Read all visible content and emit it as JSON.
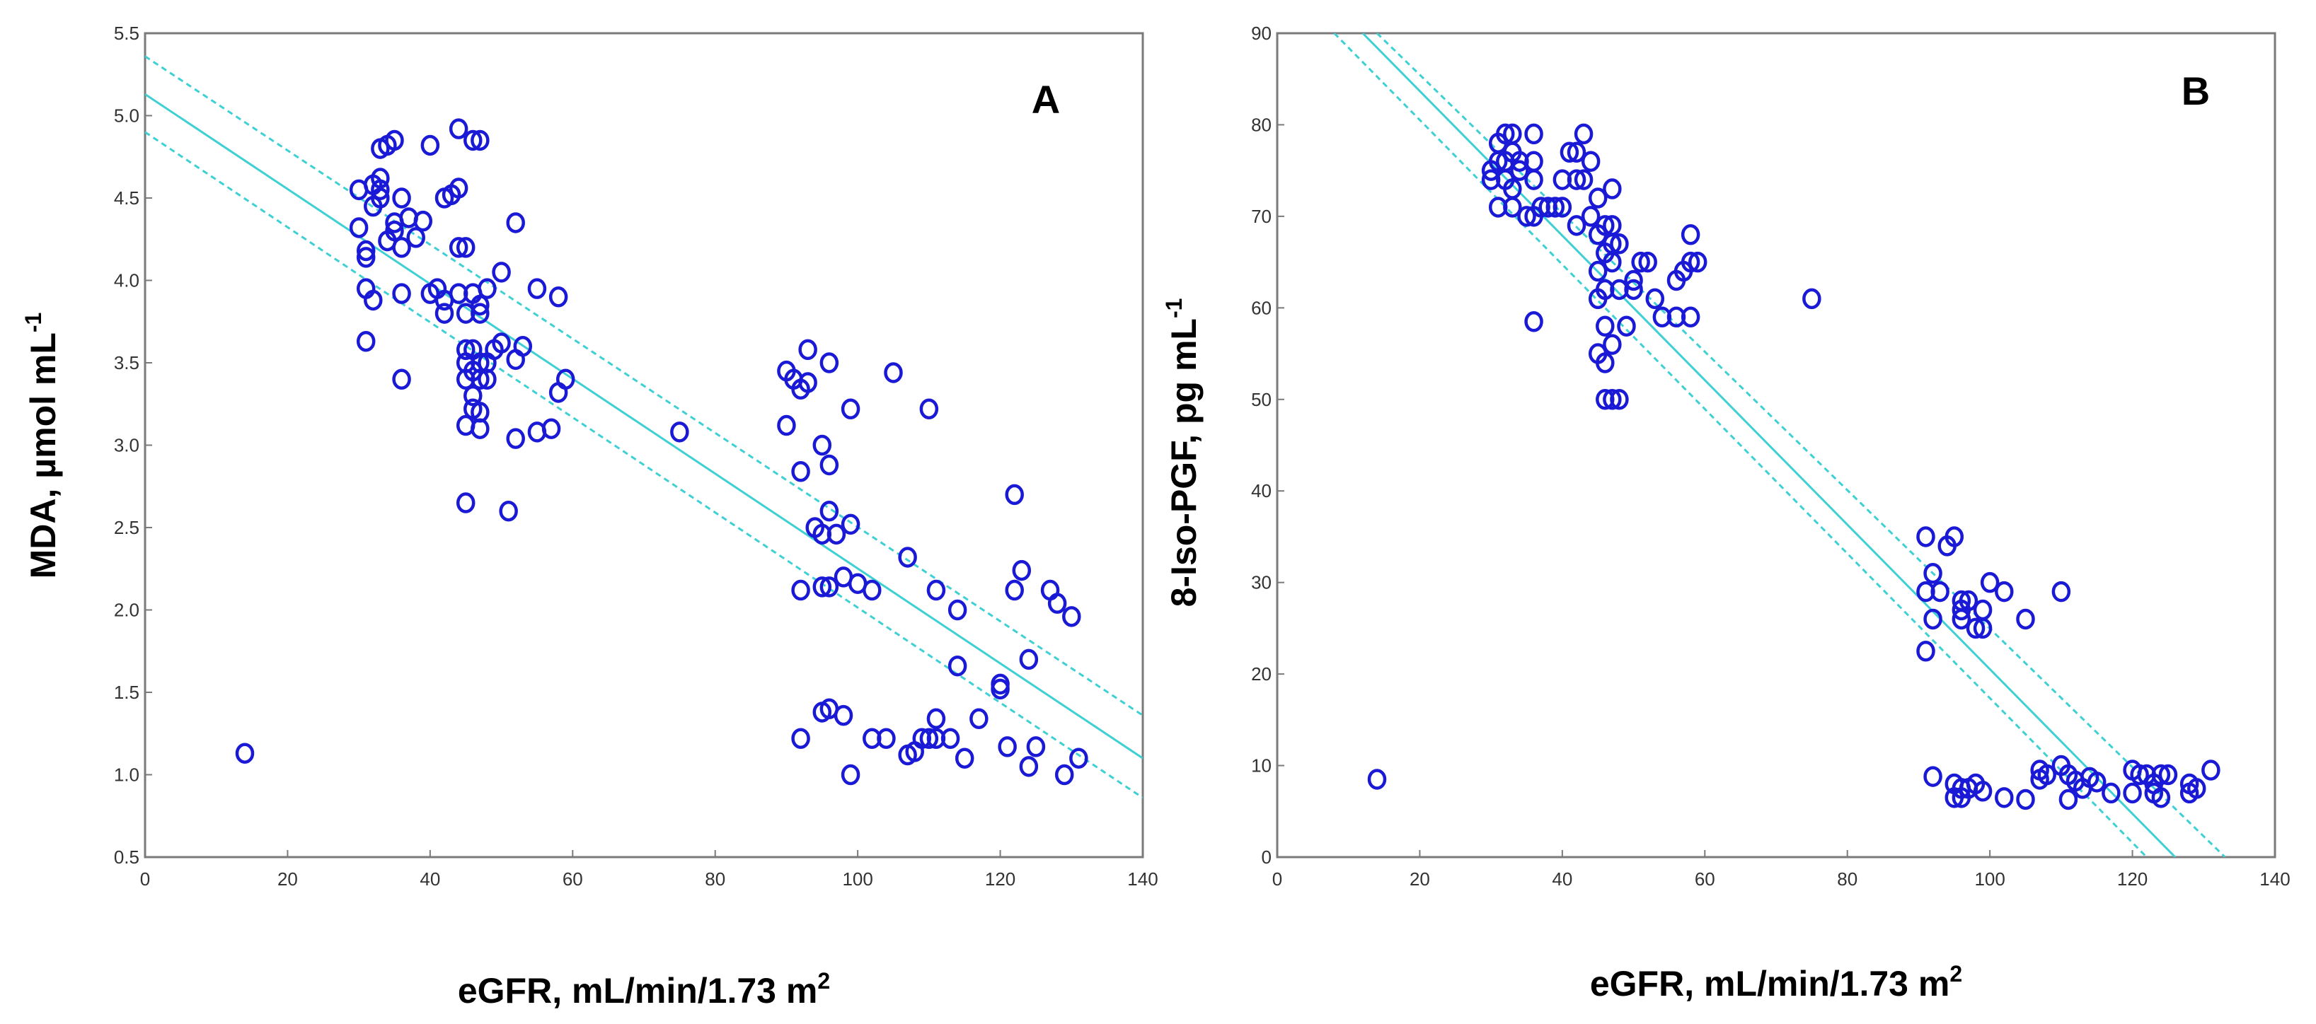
{
  "chart_data": [
    {
      "type": "scatter",
      "panel": "A",
      "xlabel": "eGFR, mL/min/1.73 m",
      "xlabel_sup": "2",
      "ylabel": "MDA, µmol mL",
      "ylabel_sup": "-1",
      "xlim": [
        0,
        140
      ],
      "ylim": [
        0.5,
        5.5
      ],
      "xticks": [
        "0",
        "20",
        "40",
        "60",
        "80",
        "100",
        "120",
        "140"
      ],
      "yticks": [
        "0.5",
        "1.0",
        "1.5",
        "2.0",
        "2.5",
        "3.0",
        "3.5",
        "4.0",
        "4.5",
        "5.0",
        "5.5"
      ],
      "point_color": "#1a1ad6",
      "fit_color": "#3fd0d4",
      "regression": {
        "fit": [
          [
            0,
            5.13
          ],
          [
            140,
            1.1
          ]
        ],
        "upper": [
          [
            0,
            5.36
          ],
          [
            140,
            1.36
          ]
        ],
        "lower": [
          [
            0,
            4.9
          ],
          [
            140,
            0.86
          ]
        ]
      },
      "points": [
        [
          14,
          1.13
        ],
        [
          30,
          4.55
        ],
        [
          30,
          4.32
        ],
        [
          31,
          4.18
        ],
        [
          31,
          3.95
        ],
        [
          31,
          3.63
        ],
        [
          31,
          4.14
        ],
        [
          32,
          4.58
        ],
        [
          32,
          3.88
        ],
        [
          32,
          4.45
        ],
        [
          33,
          4.55
        ],
        [
          33,
          4.62
        ],
        [
          33,
          4.8
        ],
        [
          33,
          4.5
        ],
        [
          34,
          4.82
        ],
        [
          34,
          4.24
        ],
        [
          35,
          4.85
        ],
        [
          35,
          4.35
        ],
        [
          35,
          4.3
        ],
        [
          36,
          4.5
        ],
        [
          36,
          4.2
        ],
        [
          36,
          3.92
        ],
        [
          36,
          3.4
        ],
        [
          37,
          4.38
        ],
        [
          38,
          4.26
        ],
        [
          39,
          4.36
        ],
        [
          40,
          4.82
        ],
        [
          40,
          3.92
        ],
        [
          41,
          3.95
        ],
        [
          42,
          3.88
        ],
        [
          42,
          3.8
        ],
        [
          42,
          4.5
        ],
        [
          43,
          4.52
        ],
        [
          44,
          4.56
        ],
        [
          44,
          4.92
        ],
        [
          44,
          3.92
        ],
        [
          44,
          4.2
        ],
        [
          45,
          4.2
        ],
        [
          45,
          3.8
        ],
        [
          45,
          3.58
        ],
        [
          45,
          3.5
        ],
        [
          45,
          3.4
        ],
        [
          45,
          3.12
        ],
        [
          45,
          2.65
        ],
        [
          46,
          3.92
        ],
        [
          46,
          3.58
        ],
        [
          46,
          3.45
        ],
        [
          46,
          3.3
        ],
        [
          46,
          3.22
        ],
        [
          46,
          4.85
        ],
        [
          47,
          4.85
        ],
        [
          47,
          3.85
        ],
        [
          47,
          3.8
        ],
        [
          47,
          3.5
        ],
        [
          47,
          3.4
        ],
        [
          47,
          3.2
        ],
        [
          47,
          3.1
        ],
        [
          48,
          3.95
        ],
        [
          48,
          3.5
        ],
        [
          48,
          3.4
        ],
        [
          49,
          3.58
        ],
        [
          50,
          4.05
        ],
        [
          50,
          3.62
        ],
        [
          51,
          2.6
        ],
        [
          52,
          4.35
        ],
        [
          52,
          3.52
        ],
        [
          52,
          3.04
        ],
        [
          53,
          3.6
        ],
        [
          55,
          3.95
        ],
        [
          55,
          3.08
        ],
        [
          57,
          3.1
        ],
        [
          58,
          3.9
        ],
        [
          58,
          3.32
        ],
        [
          59,
          3.4
        ],
        [
          75,
          3.08
        ],
        [
          90,
          3.45
        ],
        [
          90,
          3.12
        ],
        [
          91,
          3.4
        ],
        [
          92,
          3.34
        ],
        [
          92,
          2.84
        ],
        [
          92,
          2.12
        ],
        [
          92,
          1.22
        ],
        [
          93,
          3.58
        ],
        [
          93,
          3.38
        ],
        [
          94,
          2.5
        ],
        [
          95,
          3.0
        ],
        [
          95,
          2.46
        ],
        [
          95,
          2.14
        ],
        [
          95,
          1.38
        ],
        [
          96,
          3.5
        ],
        [
          96,
          2.88
        ],
        [
          96,
          2.6
        ],
        [
          96,
          2.14
        ],
        [
          96,
          1.4
        ],
        [
          97,
          2.46
        ],
        [
          98,
          2.2
        ],
        [
          98,
          1.36
        ],
        [
          99,
          3.22
        ],
        [
          99,
          2.52
        ],
        [
          99,
          1.0
        ],
        [
          100,
          2.16
        ],
        [
          102,
          2.12
        ],
        [
          102,
          1.22
        ],
        [
          104,
          1.22
        ],
        [
          105,
          3.44
        ],
        [
          107,
          2.32
        ],
        [
          107,
          1.12
        ],
        [
          108,
          1.14
        ],
        [
          109,
          1.22
        ],
        [
          110,
          3.22
        ],
        [
          110,
          1.22
        ],
        [
          111,
          2.12
        ],
        [
          111,
          1.34
        ],
        [
          111,
          1.22
        ],
        [
          113,
          1.22
        ],
        [
          114,
          2.0
        ],
        [
          114,
          1.66
        ],
        [
          115,
          1.1
        ],
        [
          117,
          1.34
        ],
        [
          120,
          1.55
        ],
        [
          120,
          1.52
        ],
        [
          121,
          1.17
        ],
        [
          122,
          2.7
        ],
        [
          122,
          2.12
        ],
        [
          123,
          2.24
        ],
        [
          124,
          1.7
        ],
        [
          124,
          1.05
        ],
        [
          125,
          1.17
        ],
        [
          127,
          2.12
        ],
        [
          128,
          2.04
        ],
        [
          129,
          1.0
        ],
        [
          130,
          1.96
        ],
        [
          131,
          1.1
        ]
      ]
    },
    {
      "type": "scatter",
      "panel": "B",
      "xlabel": "eGFR, mL/min/1.73 m",
      "xlabel_sup": "2",
      "ylabel": "8-Iso-PGF, pg mL",
      "ylabel_sup": "-1",
      "xlim": [
        0,
        140
      ],
      "ylim": [
        0,
        90
      ],
      "xticks": [
        "0",
        "20",
        "40",
        "60",
        "80",
        "100",
        "120",
        "140"
      ],
      "yticks": [
        "0",
        "10",
        "20",
        "30",
        "40",
        "50",
        "60",
        "70",
        "80",
        "90"
      ],
      "point_color": "#1a1ad6",
      "fit_color": "#3fd0d4",
      "regression": {
        "fit": [
          [
            12,
            90
          ],
          [
            126,
            0
          ]
        ],
        "upper": [
          [
            14,
            90
          ],
          [
            133,
            0
          ]
        ],
        "lower": [
          [
            8,
            90
          ],
          [
            122,
            0
          ]
        ]
      },
      "points": [
        [
          14,
          8.5
        ],
        [
          30,
          74
        ],
        [
          30,
          75
        ],
        [
          31,
          76
        ],
        [
          31,
          78
        ],
        [
          31,
          71
        ],
        [
          32,
          79
        ],
        [
          32,
          76
        ],
        [
          32,
          74
        ],
        [
          33,
          79
        ],
        [
          33,
          77
        ],
        [
          33,
          73
        ],
        [
          33,
          71
        ],
        [
          34,
          75
        ],
        [
          34,
          76
        ],
        [
          35,
          70
        ],
        [
          36,
          74
        ],
        [
          36,
          76
        ],
        [
          36,
          79
        ],
        [
          36,
          70
        ],
        [
          37,
          71
        ],
        [
          38,
          71
        ],
        [
          39,
          71
        ],
        [
          40,
          74
        ],
        [
          40,
          71
        ],
        [
          41,
          77
        ],
        [
          42,
          77
        ],
        [
          42,
          74
        ],
        [
          42,
          69
        ],
        [
          43,
          79
        ],
        [
          43,
          74
        ],
        [
          44,
          76
        ],
        [
          44,
          70
        ],
        [
          45,
          68
        ],
        [
          45,
          64
        ],
        [
          45,
          55
        ],
        [
          45,
          61
        ],
        [
          45,
          72
        ],
        [
          46,
          69
        ],
        [
          46,
          66
        ],
        [
          46,
          62
        ],
        [
          46,
          58
        ],
        [
          46,
          54
        ],
        [
          46,
          50
        ],
        [
          47,
          73
        ],
        [
          47,
          69
        ],
        [
          47,
          67
        ],
        [
          47,
          65
        ],
        [
          47,
          56
        ],
        [
          47,
          50
        ],
        [
          48,
          67
        ],
        [
          48,
          62
        ],
        [
          48,
          50
        ],
        [
          49,
          58
        ],
        [
          50,
          63
        ],
        [
          50,
          62
        ],
        [
          51,
          65
        ],
        [
          52,
          65
        ],
        [
          53,
          61
        ],
        [
          54,
          59
        ],
        [
          56,
          59
        ],
        [
          56,
          63
        ],
        [
          57,
          64
        ],
        [
          58,
          68
        ],
        [
          58,
          65
        ],
        [
          58,
          59
        ],
        [
          59,
          65
        ],
        [
          36,
          58.5
        ],
        [
          75,
          61
        ],
        [
          91,
          35
        ],
        [
          91,
          29
        ],
        [
          91,
          22.5
        ],
        [
          92,
          26
        ],
        [
          92,
          31
        ],
        [
          93,
          29
        ],
        [
          94,
          34
        ],
        [
          95,
          35
        ],
        [
          96,
          28
        ],
        [
          96,
          27
        ],
        [
          96,
          26
        ],
        [
          97,
          28
        ],
        [
          98,
          25
        ],
        [
          99,
          25
        ],
        [
          99,
          27
        ],
        [
          100,
          30
        ],
        [
          102,
          29
        ],
        [
          105,
          26
        ],
        [
          110,
          29
        ],
        [
          92,
          8.8
        ],
        [
          95,
          8
        ],
        [
          95,
          6.5
        ],
        [
          96,
          7.5
        ],
        [
          96,
          6.5
        ],
        [
          97,
          7.5
        ],
        [
          98,
          8
        ],
        [
          99,
          7.2
        ],
        [
          102,
          6.5
        ],
        [
          105,
          6.3
        ],
        [
          107,
          9.5
        ],
        [
          107,
          8.5
        ],
        [
          108,
          9
        ],
        [
          110,
          10
        ],
        [
          111,
          9
        ],
        [
          111,
          6.3
        ],
        [
          112,
          8.3
        ],
        [
          113,
          7.5
        ],
        [
          114,
          8.7
        ],
        [
          115,
          8.2
        ],
        [
          117,
          7
        ],
        [
          120,
          9.5
        ],
        [
          120,
          7
        ],
        [
          121,
          9
        ],
        [
          122,
          9
        ],
        [
          123,
          8
        ],
        [
          123,
          7
        ],
        [
          124,
          9
        ],
        [
          124,
          6.5
        ],
        [
          125,
          9
        ],
        [
          128,
          8
        ],
        [
          128,
          7
        ],
        [
          129,
          7.5
        ],
        [
          131,
          9.5
        ]
      ]
    }
  ]
}
